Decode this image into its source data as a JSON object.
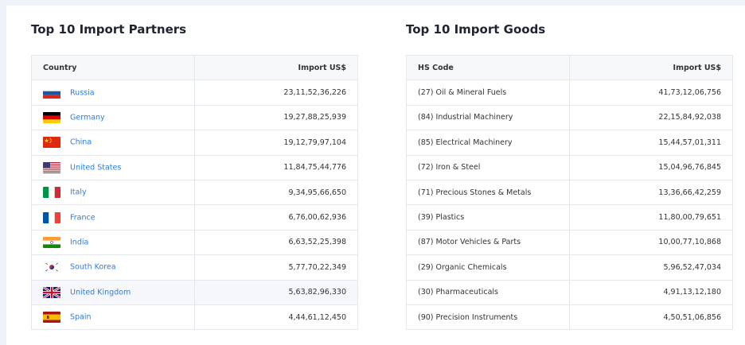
{
  "partners": {
    "title": "Top 10 Import Partners",
    "col_country": "Country",
    "col_import": "Import US$",
    "rows": [
      {
        "flag": "russia-flag-icon",
        "country": "Russia",
        "value": "23,11,52,36,226"
      },
      {
        "flag": "germany-flag-icon",
        "country": "Germany",
        "value": "19,27,88,25,939"
      },
      {
        "flag": "china-flag-icon",
        "country": "China",
        "value": "19,12,79,97,104"
      },
      {
        "flag": "usa-flag-icon",
        "country": "United States",
        "value": "11,84,75,44,776"
      },
      {
        "flag": "italy-flag-icon",
        "country": "Italy",
        "value": "9,34,95,66,650"
      },
      {
        "flag": "france-flag-icon",
        "country": "France",
        "value": "6,76,00,62,936"
      },
      {
        "flag": "india-flag-icon",
        "country": "India",
        "value": "6,63,52,25,398"
      },
      {
        "flag": "south-korea-flag-icon",
        "country": "South Korea",
        "value": "5,77,70,22,349"
      },
      {
        "flag": "uk-flag-icon",
        "country": "United Kingdom",
        "value": "5,63,82,96,330"
      },
      {
        "flag": "spain-flag-icon",
        "country": "Spain",
        "value": "4,44,61,12,450"
      }
    ]
  },
  "goods": {
    "title": "Top 10 Import Goods",
    "col_hs": "HS Code",
    "col_import": "Import US$",
    "rows": [
      {
        "code": "(27) Oil & Mineral Fuels",
        "value": "41,73,12,06,756"
      },
      {
        "code": "(84) Industrial Machinery",
        "value": "22,15,84,92,038"
      },
      {
        "code": "(85) Electrical Machinery",
        "value": "15,44,57,01,311"
      },
      {
        "code": "(72) Iron & Steel",
        "value": "15,04,96,76,845"
      },
      {
        "code": "(71) Precious Stones & Metals",
        "value": "13,36,66,42,259"
      },
      {
        "code": "(39) Plastics",
        "value": "11,80,00,79,651"
      },
      {
        "code": "(87) Motor Vehicles & Parts",
        "value": "10,00,77,10,868"
      },
      {
        "code": "(29) Organic Chemicals",
        "value": "5,96,52,47,034"
      },
      {
        "code": "(30) Pharmaceuticals",
        "value": "4,91,13,12,180"
      },
      {
        "code": "(90) Precision Instruments",
        "value": "4,50,51,06,856"
      }
    ]
  },
  "colors": {
    "link": "#2b7de9",
    "header_bg": "#f7f8fa",
    "border": "#e4e7ec",
    "page_bg": "#eef3fa"
  }
}
